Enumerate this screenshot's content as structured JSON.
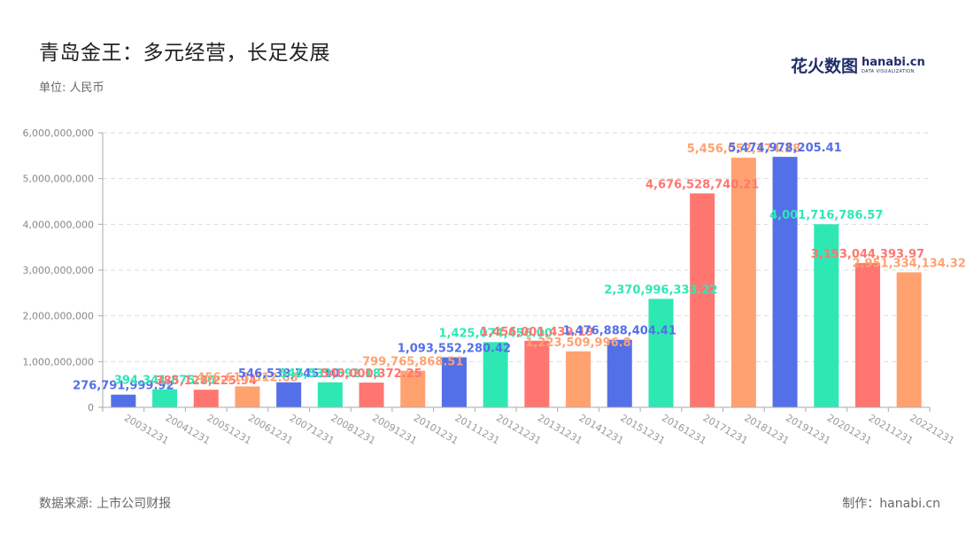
{
  "title": "青岛金王：多元经营，长足发展",
  "unit_label": "单位: 人民币",
  "brand": {
    "cn": "花火数图",
    "en": "hanabi.cn",
    "en_sub": "DATA VISUALIZATION"
  },
  "source_label": "数据来源: 上市公司财报",
  "maker_label": "制作：hanabi.cn",
  "colors": [
    "#5470e8",
    "#2ee8b4",
    "#ff7670",
    "#ffa270"
  ],
  "chart_data": {
    "type": "bar",
    "title": "青岛金王：多元经营，长足发展",
    "ylabel": "",
    "xlabel": "",
    "ylim": [
      0,
      6000000000
    ],
    "yticks": [
      0,
      1000000000,
      2000000000,
      3000000000,
      4000000000,
      5000000000,
      6000000000
    ],
    "ytick_labels": [
      "0",
      "1,000,000,000",
      "2,000,000,000",
      "3,000,000,000",
      "4,000,000,000",
      "5,000,000,000",
      "6,000,000,000"
    ],
    "grid": true,
    "categories": [
      "20031231",
      "20041231",
      "20051231",
      "20061231",
      "20071231",
      "20081231",
      "20091231",
      "20101231",
      "20111231",
      "20121231",
      "20131231",
      "20141231",
      "20151231",
      "20161231",
      "20171231",
      "20181231",
      "20191231",
      "20201231",
      "20211231",
      "20221231"
    ],
    "values": [
      276791999.92,
      394341875.1,
      385128225.94,
      456615312.68,
      546538745.1,
      546539592.18,
      540000372.25,
      799765868.51,
      1093552280.42,
      1425074456.0,
      1456001439.19,
      1223509996.8,
      1476888404.41,
      2370996333.22,
      4676528740.21,
      5456052174.28,
      5474978205.41,
      4001716786.57,
      3153044393.97,
      2951334134.32
    ],
    "value_labels": [
      "276,791,999.92",
      "394,341,875.10",
      "385,128,225.94",
      "456,615,312.68",
      "546,538,745.10",
      "546,539,592.18",
      "540,000,372.25",
      "799,765,868.51",
      "1,093,552,280.42",
      "1,425,074,456.00",
      "1,456,001,439.19",
      "1,223,509,996.8",
      "1,476,888,404.41",
      "2,370,996,333.22",
      "4,676,528,740.21",
      "5,456,052,174.28",
      "5,474,978,205.41",
      "4,001,716,786.57",
      "3,153,044,393.97",
      "2,951,334,134.32"
    ]
  }
}
